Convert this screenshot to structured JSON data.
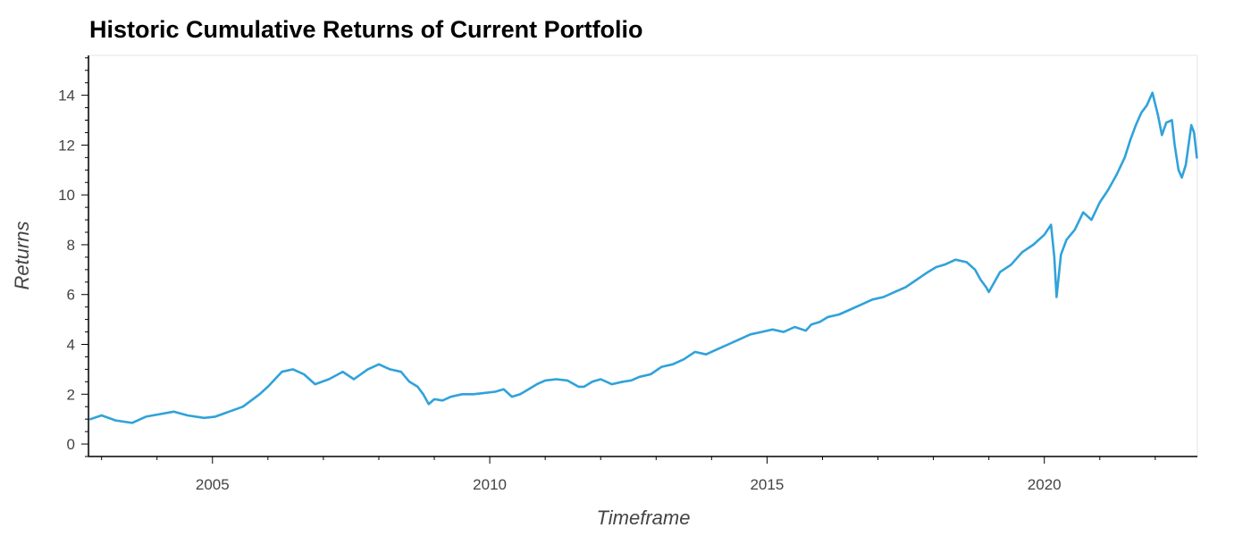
{
  "chart_data": {
    "type": "line",
    "title": "Historic Cumulative Returns of Current Portfolio",
    "xlabel": "Timeframe",
    "ylabel": "Returns",
    "xlim": [
      2002.78,
      2022.76
    ],
    "ylim": [
      -0.5,
      15.6
    ],
    "x_ticks": [
      2005,
      2010,
      2015,
      2020
    ],
    "x_tick_labels": [
      "2005",
      "2010",
      "2015",
      "2020"
    ],
    "y_ticks": [
      0,
      2,
      4,
      6,
      8,
      10,
      12,
      14
    ],
    "y_tick_labels": [
      "0",
      "2",
      "4",
      "6",
      "8",
      "10",
      "12",
      "14"
    ],
    "grid": false,
    "legend": "none",
    "series": [
      {
        "color": "#30a2da",
        "x": [
          2002.8,
          2003.0,
          2003.25,
          2003.55,
          2003.8,
          2004.05,
          2004.3,
          2004.55,
          2004.85,
          2005.05,
          2005.3,
          2005.55,
          2005.85,
          2006.0,
          2006.25,
          2006.45,
          2006.65,
          2006.85,
          2007.1,
          2007.35,
          2007.55,
          2007.8,
          2008.0,
          2008.2,
          2008.4,
          2008.55,
          2008.7,
          2008.8,
          2008.9,
          2009.0,
          2009.15,
          2009.3,
          2009.5,
          2009.7,
          2009.9,
          2010.1,
          2010.25,
          2010.4,
          2010.55,
          2010.7,
          2010.85,
          2011.0,
          2011.2,
          2011.4,
          2011.6,
          2011.7,
          2011.85,
          2012.0,
          2012.2,
          2012.4,
          2012.55,
          2012.7,
          2012.9,
          2013.1,
          2013.3,
          2013.5,
          2013.7,
          2013.9,
          2014.1,
          2014.3,
          2014.5,
          2014.7,
          2014.9,
          2015.1,
          2015.3,
          2015.5,
          2015.7,
          2015.8,
          2015.95,
          2016.1,
          2016.3,
          2016.5,
          2016.7,
          2016.9,
          2017.1,
          2017.3,
          2017.5,
          2017.7,
          2017.9,
          2018.05,
          2018.2,
          2018.4,
          2018.6,
          2018.75,
          2018.85,
          2018.95,
          2019.0,
          2019.2,
          2019.4,
          2019.6,
          2019.8,
          2020.0,
          2020.12,
          2020.18,
          2020.22,
          2020.3,
          2020.4,
          2020.55,
          2020.7,
          2020.85,
          2021.0,
          2021.15,
          2021.3,
          2021.45,
          2021.55,
          2021.65,
          2021.75,
          2021.85,
          2021.95,
          2022.05,
          2022.12,
          2022.2,
          2022.3,
          2022.35,
          2022.42,
          2022.48,
          2022.55,
          2022.6,
          2022.65,
          2022.7,
          2022.75
        ],
        "y": [
          1.0,
          1.15,
          0.95,
          0.85,
          1.1,
          1.2,
          1.3,
          1.15,
          1.05,
          1.1,
          1.3,
          1.5,
          2.0,
          2.3,
          2.9,
          3.0,
          2.8,
          2.4,
          2.6,
          2.9,
          2.6,
          3.0,
          3.2,
          3.0,
          2.9,
          2.5,
          2.3,
          2.0,
          1.6,
          1.8,
          1.75,
          1.9,
          2.0,
          2.0,
          2.05,
          2.1,
          2.2,
          1.9,
          2.0,
          2.2,
          2.4,
          2.55,
          2.6,
          2.55,
          2.3,
          2.3,
          2.5,
          2.6,
          2.4,
          2.5,
          2.55,
          2.7,
          2.8,
          3.1,
          3.2,
          3.4,
          3.7,
          3.6,
          3.8,
          4.0,
          4.2,
          4.4,
          4.5,
          4.6,
          4.5,
          4.7,
          4.55,
          4.8,
          4.9,
          5.1,
          5.2,
          5.4,
          5.6,
          5.8,
          5.9,
          6.1,
          6.3,
          6.6,
          6.9,
          7.1,
          7.2,
          7.4,
          7.3,
          7.0,
          6.6,
          6.3,
          6.1,
          6.9,
          7.2,
          7.7,
          8.0,
          8.4,
          8.8,
          7.5,
          5.9,
          7.6,
          8.2,
          8.6,
          9.3,
          9.0,
          9.7,
          10.2,
          10.8,
          11.5,
          12.2,
          12.8,
          13.3,
          13.6,
          14.1,
          13.2,
          12.4,
          12.9,
          13.0,
          12.0,
          11.0,
          10.7,
          11.2,
          12.0,
          12.8,
          12.5,
          11.5
        ]
      }
    ]
  }
}
